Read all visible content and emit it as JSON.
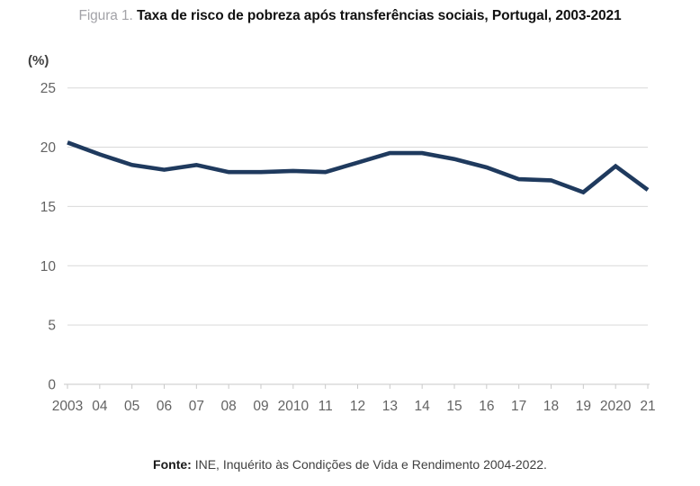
{
  "figure": {
    "label": "Figura 1.",
    "title": " Taxa de risco de pobreza após transferências sociais, Portugal, 2003-2021"
  },
  "footer": {
    "source_label": "Fonte:",
    "source_text": " INE, Inquérito às Condições de Vida e Rendimento 2004-2022."
  },
  "chart_data": {
    "type": "line",
    "title": "Taxa de risco de pobreza após transferências sociais, Portugal, 2003-2021",
    "unit_label": "(%)",
    "categories": [
      "2003",
      "04",
      "05",
      "06",
      "07",
      "08",
      "09",
      "2010",
      "11",
      "12",
      "13",
      "14",
      "15",
      "16",
      "17",
      "18",
      "19",
      "2020",
      "21"
    ],
    "values": [
      20.4,
      19.4,
      18.5,
      18.1,
      18.5,
      17.9,
      17.9,
      18.0,
      17.9,
      18.7,
      19.5,
      19.5,
      19.0,
      18.3,
      17.3,
      17.2,
      16.2,
      18.4,
      16.4
    ],
    "xlabel": "",
    "ylabel": "(%)",
    "ylim": [
      0,
      25
    ],
    "yticks": [
      0,
      5,
      10,
      15,
      20,
      25
    ],
    "grid": true,
    "legend_position": "none",
    "line_color": "#1f3a5e",
    "gridline_color": "#d9d9d9",
    "axis_color": "#c9c9c9",
    "tick_label_color": "#636363"
  }
}
